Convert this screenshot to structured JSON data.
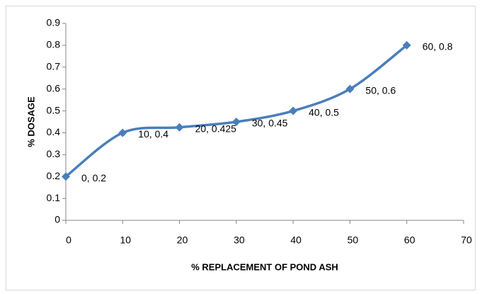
{
  "chart_data": {
    "type": "line",
    "x_label": "% REPLACEMENT OF POND ASH",
    "y_label": "% DOSAGE",
    "x": [
      0,
      10,
      20,
      30,
      40,
      50,
      60
    ],
    "series": [
      {
        "color": "#4a7ebb",
        "values": [
          0.2,
          0.4,
          0.425,
          0.45,
          0.5,
          0.6,
          0.8
        ],
        "value_labels": [
          "0, 0.2",
          "10, 0.4",
          "20, 0.425",
          "30, 0.45",
          "40, 0.5",
          "50, 0.6",
          "60, 0.8"
        ]
      }
    ],
    "xlim": [
      0,
      70
    ],
    "xticks": [
      0,
      10,
      20,
      30,
      40,
      50,
      60,
      70
    ],
    "ylim": [
      0,
      0.9
    ],
    "yticks": [
      0,
      0.1,
      0.2,
      0.3,
      0.4,
      0.5,
      0.6,
      0.7,
      0.8,
      0.9
    ],
    "grid": false,
    "smooth": true
  }
}
